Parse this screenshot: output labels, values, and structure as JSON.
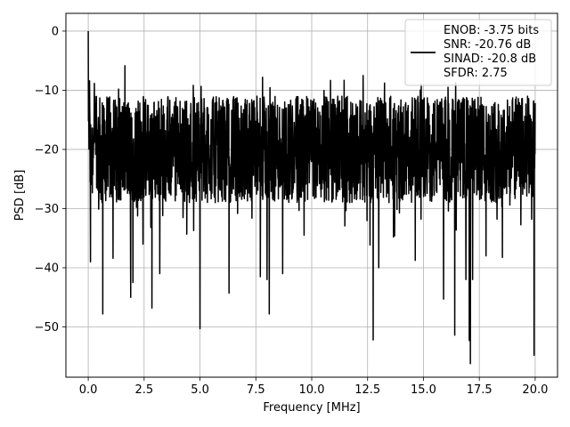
{
  "chart_data": {
    "type": "line",
    "title": "",
    "xlabel": "Frequency [MHz]",
    "ylabel": "PSD [dB]",
    "xlim": [
      -1.0,
      21.0
    ],
    "ylim": [
      -58.5,
      3.0
    ],
    "xticks": [
      0.0,
      2.5,
      5.0,
      7.5,
      10.0,
      12.5,
      15.0,
      17.5,
      20.0
    ],
    "xtick_labels": [
      "0.0",
      "2.5",
      "5.0",
      "7.5",
      "10.0",
      "12.5",
      "15.0",
      "17.5",
      "20.0"
    ],
    "yticks": [
      0,
      -10,
      -20,
      -30,
      -40,
      -50
    ],
    "ytick_labels": [
      "0",
      "−10",
      "−20",
      "−30",
      "−40",
      "−50"
    ],
    "grid": true,
    "legend_position": "top-right",
    "series": [
      {
        "name": "ENOB: -3.75 bits\nSNR: -20.76 dB\nSINAD: -20.8 dB\nSFDR: 2.75",
        "color": "#000000",
        "x_range": [
          0.0,
          20.0
        ],
        "baseline_db": -20.0,
        "noise_spread_db": 9.0,
        "peak_at_dc_db": 0.0,
        "notable_points": [
          {
            "x": 0.0,
            "y": 0.0
          },
          {
            "x": 0.1,
            "y": -39.0
          },
          {
            "x": 0.65,
            "y": -47.8
          },
          {
            "x": 1.9,
            "y": -45.0
          },
          {
            "x": 2.0,
            "y": -42.5
          },
          {
            "x": 2.45,
            "y": -36.0
          },
          {
            "x": 2.85,
            "y": -46.8
          },
          {
            "x": 3.2,
            "y": -41.0
          },
          {
            "x": 5.0,
            "y": -50.3
          },
          {
            "x": 6.3,
            "y": -44.3
          },
          {
            "x": 7.7,
            "y": -41.5
          },
          {
            "x": 7.8,
            "y": -7.8
          },
          {
            "x": 8.0,
            "y": -42.0
          },
          {
            "x": 8.1,
            "y": -47.8
          },
          {
            "x": 8.7,
            "y": -41.0
          },
          {
            "x": 12.3,
            "y": -7.5
          },
          {
            "x": 12.75,
            "y": -52.2
          },
          {
            "x": 13.0,
            "y": -40.0
          },
          {
            "x": 14.9,
            "y": -9.0
          },
          {
            "x": 15.9,
            "y": -45.3
          },
          {
            "x": 16.1,
            "y": -9.5
          },
          {
            "x": 16.4,
            "y": -51.4
          },
          {
            "x": 16.9,
            "y": -42.0
          },
          {
            "x": 17.05,
            "y": -52.3
          },
          {
            "x": 17.1,
            "y": -56.2
          },
          {
            "x": 17.2,
            "y": -42.0
          },
          {
            "x": 17.8,
            "y": -38.0
          },
          {
            "x": 19.95,
            "y": -54.8
          }
        ]
      }
    ]
  }
}
